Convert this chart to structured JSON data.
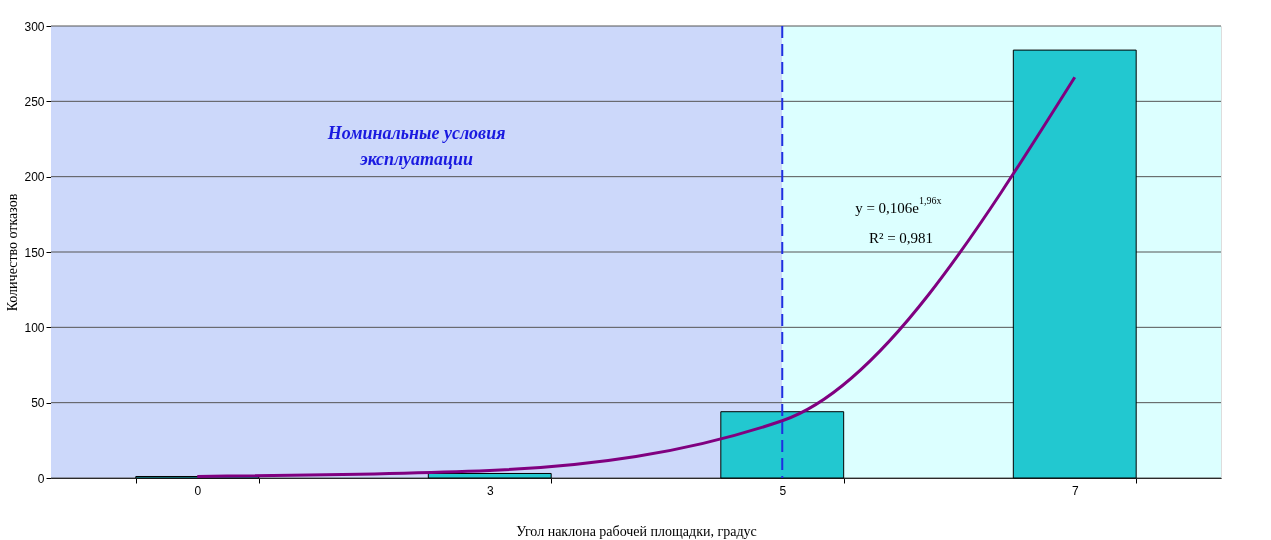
{
  "chart_data": {
    "type": "bar",
    "xlabel": "Угол наклона рабочей площадки, градус",
    "ylabel": "Количество отказов",
    "categories": [
      "0",
      "3",
      "5",
      "7"
    ],
    "series": [
      {
        "color": "#22c8d0",
        "values": [
          1,
          3,
          44,
          284
        ]
      },
      {
        "type": "line",
        "color": "#800080",
        "x": [
          "0",
          "3",
          "5",
          "7"
        ],
        "values": [
          1,
          5,
          38,
          266
        ]
      }
    ],
    "ylim": [
      0,
      300
    ],
    "yticks": [
      0,
      50,
      100,
      150,
      200,
      250,
      300
    ],
    "grid": "y",
    "ref_lines": [
      {
        "axis": "x",
        "value": "5",
        "color": "#1f2fe0",
        "line_style": "dashed"
      }
    ],
    "bands": [
      {
        "axis": "x",
        "from": "0",
        "to": "5",
        "label": "Номинальные условия\nэксплуатации",
        "color": "#ccd8fa"
      },
      {
        "axis": "x",
        "from": "5",
        "to": "7",
        "color": "#dcffff"
      }
    ],
    "annotations": [
      "y = 0,106e$^{1,96x}$",
      "R² = 0,981"
    ]
  }
}
